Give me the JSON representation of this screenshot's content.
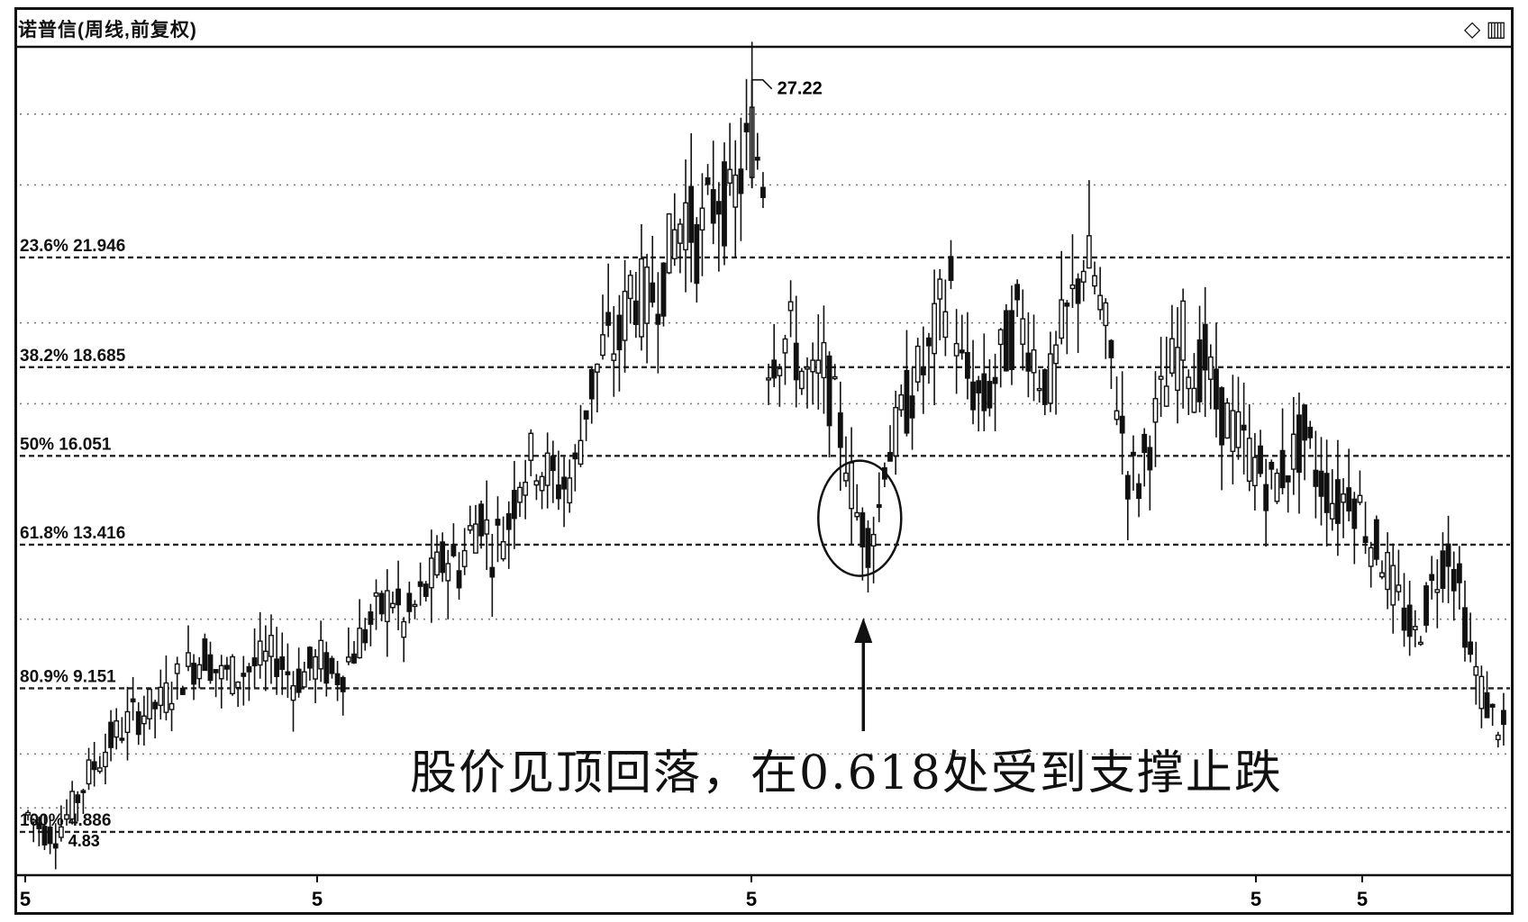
{
  "window": {
    "title": "诺普信(周线,前复权)",
    "icons": [
      "diamond-icon",
      "window-icon"
    ]
  },
  "chart_data": {
    "type": "candlestick",
    "ylim": [
      3.6,
      28.2
    ],
    "high_label": "27.22",
    "low_label": "4.83",
    "fib_levels": [
      {
        "label": "23.6% 21.946",
        "value": 21.946
      },
      {
        "label": "38.2% 18.685",
        "value": 18.685
      },
      {
        "label": "50% 16.051",
        "value": 16.051
      },
      {
        "label": "61.8% 13.416",
        "value": 13.416
      },
      {
        "label": "80.9% 9.151",
        "value": 9.151
      },
      {
        "label": "100% 4.886",
        "value": 4.886
      }
    ],
    "x_ticks": [
      "5",
      "5",
      "5",
      "5",
      "5"
    ],
    "annotation": "股价见顶回落，在0.618处受到支撑止跌",
    "path": [
      [
        0,
        5.4
      ],
      [
        3,
        4.9
      ],
      [
        5,
        4.83
      ],
      [
        8,
        5.6
      ],
      [
        11,
        6.6
      ],
      [
        15,
        7.6
      ],
      [
        19,
        8.3
      ],
      [
        24,
        8.7
      ],
      [
        28,
        9.6
      ],
      [
        32,
        10.2
      ],
      [
        35,
        9.5
      ],
      [
        38,
        9.6
      ],
      [
        42,
        9.9
      ],
      [
        45,
        10.1
      ],
      [
        48,
        9.4
      ],
      [
        50,
        9.6
      ],
      [
        53,
        10.0
      ],
      [
        55,
        9.5
      ],
      [
        57,
        9.7
      ],
      [
        60,
        10.6
      ],
      [
        63,
        11.3
      ],
      [
        66,
        11.9
      ],
      [
        68,
        11.0
      ],
      [
        71,
        11.8
      ],
      [
        74,
        12.6
      ],
      [
        76,
        13.1
      ],
      [
        78,
        12.7
      ],
      [
        80,
        13.7
      ],
      [
        82,
        14.4
      ],
      [
        84,
        13.3
      ],
      [
        87,
        14.1
      ],
      [
        89,
        15.6
      ],
      [
        92,
        16.0
      ],
      [
        95,
        15.3
      ],
      [
        97,
        15.2
      ],
      [
        99,
        15.6
      ],
      [
        101,
        17.6
      ],
      [
        104,
        19.2
      ],
      [
        107,
        19.4
      ],
      [
        109,
        21.1
      ],
      [
        112,
        20.6
      ],
      [
        115,
        21.4
      ],
      [
        117,
        22.6
      ],
      [
        119,
        23.4
      ],
      [
        121,
        22.4
      ],
      [
        123,
        23.1
      ],
      [
        125,
        23.9
      ],
      [
        127,
        23.3
      ],
      [
        129,
        24.4
      ],
      [
        131,
        25.6
      ],
      [
        133,
        24.4
      ],
      [
        134,
        19.1
      ],
      [
        136,
        19.4
      ],
      [
        138,
        19.6
      ],
      [
        140,
        18.6
      ],
      [
        142,
        18.1
      ],
      [
        144,
        18.6
      ],
      [
        146,
        17.4
      ],
      [
        148,
        16.1
      ],
      [
        150,
        14.3
      ],
      [
        152,
        13.6
      ],
      [
        154,
        14.5
      ],
      [
        155,
        16.1
      ],
      [
        157,
        16.6
      ],
      [
        159,
        17.6
      ],
      [
        161,
        18.4
      ],
      [
        163,
        18.9
      ],
      [
        165,
        20.3
      ],
      [
        167,
        21.1
      ],
      [
        169,
        18.6
      ],
      [
        171,
        18.1
      ],
      [
        173,
        17.6
      ],
      [
        175,
        18.4
      ],
      [
        177,
        19.3
      ],
      [
        179,
        20.1
      ],
      [
        181,
        19.6
      ],
      [
        183,
        18.6
      ],
      [
        185,
        18.1
      ],
      [
        187,
        19.6
      ],
      [
        189,
        20.6
      ],
      [
        191,
        21.9
      ],
      [
        193,
        21.3
      ],
      [
        195,
        19.6
      ],
      [
        197,
        17.9
      ],
      [
        199,
        15.6
      ],
      [
        201,
        15.3
      ],
      [
        203,
        16.6
      ],
      [
        205,
        17.6
      ],
      [
        207,
        18.6
      ],
      [
        209,
        19.6
      ],
      [
        211,
        18.4
      ],
      [
        213,
        18.9
      ],
      [
        215,
        17.6
      ],
      [
        217,
        17.1
      ],
      [
        219,
        16.6
      ],
      [
        221,
        16.1
      ],
      [
        223,
        15.6
      ],
      [
        225,
        15.1
      ],
      [
        227,
        15.6
      ],
      [
        229,
        16.1
      ],
      [
        231,
        16.6
      ],
      [
        233,
        15.6
      ],
      [
        235,
        15.1
      ],
      [
        237,
        14.6
      ],
      [
        239,
        15.1
      ],
      [
        241,
        14.5
      ],
      [
        243,
        13.6
      ],
      [
        245,
        13.1
      ],
      [
        247,
        12.1
      ],
      [
        249,
        11.3
      ],
      [
        251,
        10.6
      ],
      [
        253,
        11.6
      ],
      [
        255,
        12.6
      ],
      [
        257,
        13.3
      ],
      [
        259,
        12.1
      ],
      [
        261,
        10.1
      ],
      [
        263,
        9.1
      ],
      [
        265,
        8.3
      ],
      [
        267,
        7.9
      ]
    ]
  }
}
